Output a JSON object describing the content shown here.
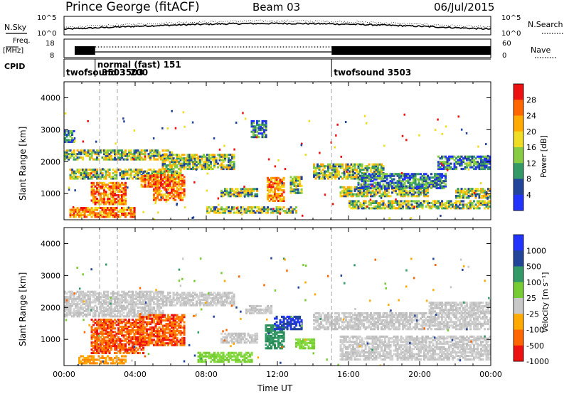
{
  "header": {
    "station": "Prince George (fitACF)",
    "beam": "Beam 03",
    "date": "06/Jul/2015"
  },
  "strip": {
    "nsky_label": "N.Sky",
    "nsearch_label": "N.Search",
    "nsky_ticks": [
      "10^5",
      "10^0"
    ],
    "nsearch_ticks": [
      "10^5",
      "10^0"
    ],
    "freq_label_top": "Freq.",
    "freq_label_unit": "[MHz]",
    "freq_ticks": [
      "18",
      "8"
    ],
    "nave_label": "Nave",
    "nave_ticks": [
      "60",
      "0"
    ],
    "cpid_label": "CPID"
  },
  "cpid_labels": [
    {
      "text": "normal (fast) 151",
      "t": 1.75,
      "row": 0
    },
    {
      "text": "twofsound 3503",
      "t": 0.0,
      "row": 1
    },
    {
      "text": "3503",
      "t": 2.0,
      "row": 1
    },
    {
      "text": "200",
      "t": 3.6,
      "row": 1
    },
    {
      "text": "twofsound 3503",
      "t": 15.05,
      "row": 1
    }
  ],
  "cpid_changes": [
    0,
    1.75,
    15.05
  ],
  "colorbars": {
    "power": {
      "label": "Power [dB]",
      "ticks": [
        "28",
        "24",
        "20",
        "16",
        "12",
        "8",
        "4"
      ],
      "colors": [
        "#ee1111",
        "#ff6600",
        "#ffaa00",
        "#eedd22",
        "#88cc44",
        "#339966",
        "#224499",
        "#2233ff"
      ]
    },
    "velocity": {
      "label": "Velocity [m s⁻¹]",
      "ticks": [
        "1000",
        "500",
        "100",
        "25",
        "-25",
        "-100",
        "-500",
        "-1000"
      ],
      "colors": [
        "#2233ff",
        "#224499",
        "#339966",
        "#77cc33",
        "#c8c8c8",
        "#ffaa00",
        "#ff6600",
        "#ee1111"
      ]
    }
  },
  "chart_data": [
    {
      "type": "heatmap",
      "name": "power",
      "ylabel": "Slant Range [km]",
      "xlim": [
        0,
        24
      ],
      "ylim": [
        180,
        4500
      ],
      "yticks": [
        1000,
        2000,
        3000,
        4000
      ],
      "dashed_x": [
        2.0,
        3.0,
        15.05
      ],
      "regions": [
        {
          "t": [
            0.0,
            0.6
          ],
          "r": [
            2600,
            2950
          ],
          "level": "low"
        },
        {
          "t": [
            0.0,
            6.0
          ],
          "r": [
            2050,
            2350
          ],
          "level": "mid"
        },
        {
          "t": [
            0.3,
            6.5
          ],
          "r": [
            1450,
            1750
          ],
          "level": "mid"
        },
        {
          "t": [
            1.5,
            3.5
          ],
          "r": [
            650,
            1350
          ],
          "level": "high"
        },
        {
          "t": [
            0.3,
            4.0
          ],
          "r": [
            250,
            550
          ],
          "level": "high"
        },
        {
          "t": [
            4.3,
            5.2
          ],
          "r": [
            1200,
            1550
          ],
          "level": "high"
        },
        {
          "t": [
            5.0,
            6.7
          ],
          "r": [
            780,
            1600
          ],
          "level": "high"
        },
        {
          "t": [
            5.5,
            9.5
          ],
          "r": [
            1750,
            2200
          ],
          "level": "mid"
        },
        {
          "t": [
            8.0,
            13.0
          ],
          "r": [
            380,
            560
          ],
          "level": "mid"
        },
        {
          "t": [
            8.8,
            10.8
          ],
          "r": [
            900,
            1150
          ],
          "level": "mid"
        },
        {
          "t": [
            10.5,
            11.3
          ],
          "r": [
            2750,
            3300
          ],
          "level": "low"
        },
        {
          "t": [
            11.4,
            12.3
          ],
          "r": [
            750,
            1500
          ],
          "level": "high"
        },
        {
          "t": [
            12.7,
            13.3
          ],
          "r": [
            1000,
            1500
          ],
          "level": "mid"
        },
        {
          "t": [
            14.0,
            18.0
          ],
          "r": [
            1450,
            1900
          ],
          "level": "mid"
        },
        {
          "t": [
            15.5,
            20.5
          ],
          "r": [
            900,
            1200
          ],
          "level": "mid"
        },
        {
          "t": [
            16.0,
            24.0
          ],
          "r": [
            520,
            760
          ],
          "level": "mid"
        },
        {
          "t": [
            16.5,
            21.5
          ],
          "r": [
            1150,
            1600
          ],
          "level": "low"
        },
        {
          "t": [
            21.0,
            24.0
          ],
          "r": [
            1750,
            2150
          ],
          "level": "low"
        },
        {
          "t": [
            22.0,
            24.0
          ],
          "r": [
            850,
            1150
          ],
          "level": "mid"
        }
      ]
    },
    {
      "type": "heatmap",
      "name": "velocity",
      "ylabel": "Slant Range [km]",
      "xlabel": "Time UT",
      "xlim": [
        0,
        24
      ],
      "ylim": [
        180,
        4500
      ],
      "yticks": [
        1000,
        2000,
        3000,
        4000
      ],
      "xticks": [
        "00:00",
        "04:00",
        "08:00",
        "12:00",
        "16:00",
        "20:00",
        "00:00"
      ],
      "dashed_x": [
        2.0,
        3.0,
        15.05
      ],
      "regions": [
        {
          "t": [
            0.0,
            5.5
          ],
          "r": [
            1700,
            2500
          ],
          "level": "ground"
        },
        {
          "t": [
            1.5,
            4.5
          ],
          "r": [
            550,
            1650
          ],
          "level": "neg_high"
        },
        {
          "t": [
            0.8,
            3.5
          ],
          "r": [
            230,
            480
          ],
          "level": "neg_low"
        },
        {
          "t": [
            4.2,
            6.7
          ],
          "r": [
            800,
            1750
          ],
          "level": "neg_high"
        },
        {
          "t": [
            5.5,
            9.5
          ],
          "r": [
            2050,
            2450
          ],
          "level": "ground"
        },
        {
          "t": [
            7.5,
            10.5
          ],
          "r": [
            280,
            580
          ],
          "level": "pos_low"
        },
        {
          "t": [
            8.8,
            10.8
          ],
          "r": [
            880,
            1180
          ],
          "level": "ground"
        },
        {
          "t": [
            10.2,
            11.6
          ],
          "r": [
            1800,
            2050
          ],
          "level": "ground"
        },
        {
          "t": [
            11.3,
            12.3
          ],
          "r": [
            700,
            1450
          ],
          "level": "pos_mid"
        },
        {
          "t": [
            11.8,
            13.3
          ],
          "r": [
            1300,
            1700
          ],
          "level": "pos_high"
        },
        {
          "t": [
            13.0,
            14.0
          ],
          "r": [
            700,
            1000
          ],
          "level": "pos_low"
        },
        {
          "t": [
            14.0,
            24.0
          ],
          "r": [
            1300,
            1850
          ],
          "level": "ground"
        },
        {
          "t": [
            15.5,
            24.0
          ],
          "r": [
            350,
            1100
          ],
          "level": "ground"
        },
        {
          "t": [
            20.5,
            24.0
          ],
          "r": [
            1850,
            2150
          ],
          "level": "ground"
        }
      ]
    }
  ]
}
